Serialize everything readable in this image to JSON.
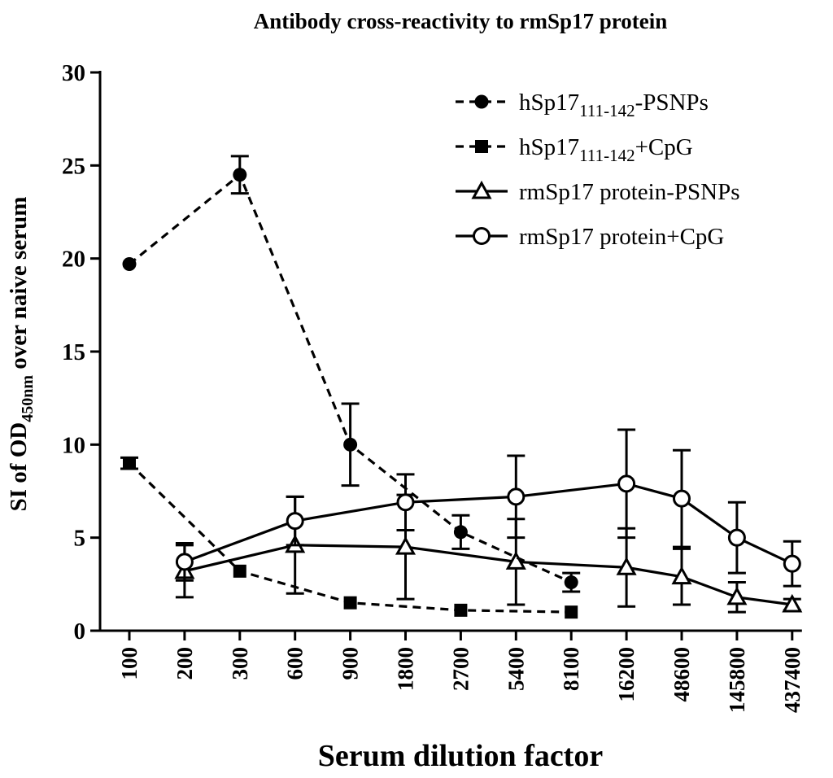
{
  "chart_data": {
    "type": "line",
    "title": "Antibody cross-reactivity to rmSp17 protein",
    "xlabel": "Serum dilution factor",
    "ylabel": {
      "prefix": "SI of OD",
      "subscript": "450nm",
      "suffix": " over naive serum"
    },
    "categories": [
      "100",
      "200",
      "300",
      "600",
      "900",
      "1800",
      "2700",
      "5400",
      "8100",
      "16200",
      "48600",
      "145800",
      "437400"
    ],
    "ylim": [
      0,
      30
    ],
    "yticks": [
      "0",
      "5",
      "10",
      "15",
      "20",
      "25",
      "30"
    ],
    "legend_position": "top-right",
    "series": [
      {
        "name": "hSp17",
        "name_sub": "111-142",
        "name_suffix": "-PSNPs",
        "line": "dashed",
        "marker": "filled-circle",
        "values": [
          19.7,
          null,
          24.5,
          null,
          10.0,
          null,
          5.3,
          null,
          2.6,
          null,
          null,
          null,
          null
        ],
        "errors": [
          0,
          null,
          1.0,
          null,
          2.2,
          null,
          0.9,
          null,
          0.5,
          null,
          null,
          null,
          null
        ]
      },
      {
        "name": "hSp17",
        "name_sub": "111-142",
        "name_suffix": "+CpG",
        "line": "dashed",
        "marker": "filled-square",
        "values": [
          9.0,
          null,
          3.2,
          null,
          1.5,
          null,
          1.1,
          null,
          1.0,
          null,
          null,
          null,
          null
        ],
        "errors": [
          0.3,
          null,
          0,
          null,
          0,
          null,
          0,
          null,
          0,
          null,
          null,
          null,
          null
        ]
      },
      {
        "name": "rmSp17 protein-PSNPs",
        "name_sub": "",
        "name_suffix": "",
        "line": "solid",
        "marker": "open-triangle",
        "values": [
          null,
          3.2,
          null,
          4.6,
          null,
          4.5,
          null,
          3.7,
          null,
          3.4,
          2.9,
          1.8,
          1.4
        ],
        "errors": [
          null,
          1.4,
          null,
          2.6,
          null,
          2.8,
          null,
          2.3,
          null,
          2.1,
          1.5,
          0.8,
          0.3
        ]
      },
      {
        "name": "rmSp17 protein+CpG",
        "name_sub": "",
        "name_suffix": "",
        "line": "solid",
        "marker": "open-circle",
        "values": [
          null,
          3.7,
          null,
          5.9,
          null,
          6.9,
          null,
          7.2,
          null,
          7.9,
          7.1,
          5.0,
          3.6
        ],
        "errors": [
          null,
          1.0,
          null,
          1.3,
          null,
          1.5,
          null,
          2.2,
          null,
          2.9,
          2.6,
          1.9,
          1.2
        ]
      }
    ]
  }
}
